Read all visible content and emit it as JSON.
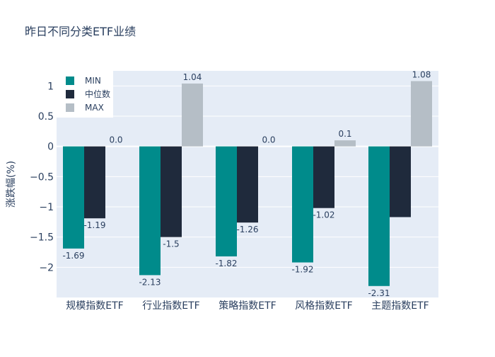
{
  "chart_data": {
    "type": "bar",
    "title": "昨日不同分类ETF业绩",
    "xlabel": "",
    "ylabel": "涨跌幅(%)",
    "categories": [
      "规模指数ETF",
      "行业指数ETF",
      "策略指数ETF",
      "风格指数ETF",
      "主题指数ETF"
    ],
    "series": [
      {
        "name": "MIN",
        "color": "#008b8b",
        "values": [
          -1.69,
          -2.13,
          -1.82,
          -1.92,
          -2.31
        ],
        "labels": [
          "-1.69",
          "-2.13",
          "-1.82",
          "-1.92",
          "-2.31"
        ]
      },
      {
        "name": "中位数",
        "color": "#1f2a3c",
        "values": [
          -1.19,
          -1.5,
          -1.26,
          -1.02,
          -1.17
        ],
        "labels": [
          "-1.19",
          "-1.5",
          "-1.26",
          "-1.02",
          ""
        ]
      },
      {
        "name": "MAX",
        "color": "#b5bec6",
        "values": [
          0.0,
          1.04,
          0.0,
          0.1,
          1.08
        ],
        "labels": [
          "0.0",
          "1.04",
          "0.0",
          "0.1",
          "1.08"
        ]
      }
    ],
    "yticks": [
      1,
      0.5,
      0,
      -0.5,
      -1,
      -1.5,
      -2
    ],
    "ytick_labels": [
      "1",
      "0.5",
      "0",
      "−0.5",
      "−1",
      "−1.5",
      "−2"
    ],
    "ylim": [
      -2.5,
      1.25
    ],
    "grid": true,
    "legend_position": "top-left",
    "plot_background": "#e5ecf6"
  }
}
